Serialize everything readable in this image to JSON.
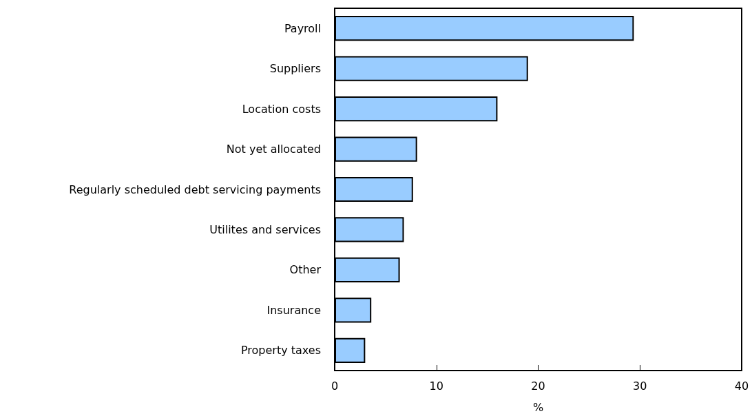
{
  "chart_data": {
    "type": "bar",
    "orientation": "horizontal",
    "xlabel": "%",
    "categories": [
      "Payroll",
      "Suppliers",
      "Location costs",
      "Not yet allocated",
      "Regularly scheduled debt servicing payments",
      "Utilites and services",
      "Other",
      "Insurance",
      "Property taxes"
    ],
    "values": [
      29.4,
      19.0,
      16.0,
      8.1,
      7.7,
      6.8,
      6.4,
      3.6,
      3.0
    ],
    "color": "#99ccff",
    "xlim": [
      0,
      40
    ],
    "xticks": [
      0,
      10,
      20,
      30,
      40
    ]
  }
}
